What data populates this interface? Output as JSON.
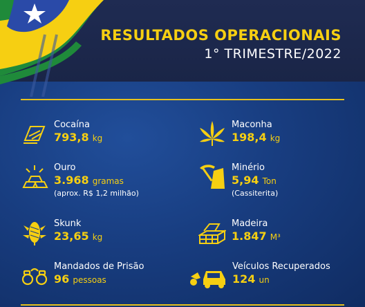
{
  "header": {
    "title": "RESULTADOS OPERACIONAIS",
    "subtitle": "1° TRIMESTRE/2022"
  },
  "colors": {
    "accent": "#f6cf12",
    "background": "#183d80",
    "header_band": "#1f2b52"
  },
  "items": [
    {
      "label": "Cocaína",
      "value": "793,8",
      "unit": "kg",
      "icon": "cocaine-icon"
    },
    {
      "label": "Maconha",
      "value": "198,4",
      "unit": "kg",
      "icon": "cannabis-leaf-icon"
    },
    {
      "label": "Ouro",
      "value": "3.968",
      "unit": "gramas",
      "note": "(aprox. R$ 1,2 milhão)",
      "icon": "gold-bars-icon"
    },
    {
      "label": "Minério",
      "value": "5,94",
      "unit": "Ton",
      "note": "(Cassiterita)",
      "icon": "pickaxe-mineral-icon"
    },
    {
      "label": "Skunk",
      "value": "23,65",
      "unit": "kg",
      "icon": "skunk-bud-icon"
    },
    {
      "label": "Madeira",
      "value": "1.847",
      "unit": "M³",
      "icon": "lumber-stack-icon"
    },
    {
      "label": "Mandados de Prisão",
      "value": "96",
      "unit": "pessoas",
      "icon": "handcuffs-icon"
    },
    {
      "label": "Veículos Recuperados",
      "value": "124",
      "unit": "un",
      "icon": "vehicles-icon"
    }
  ]
}
